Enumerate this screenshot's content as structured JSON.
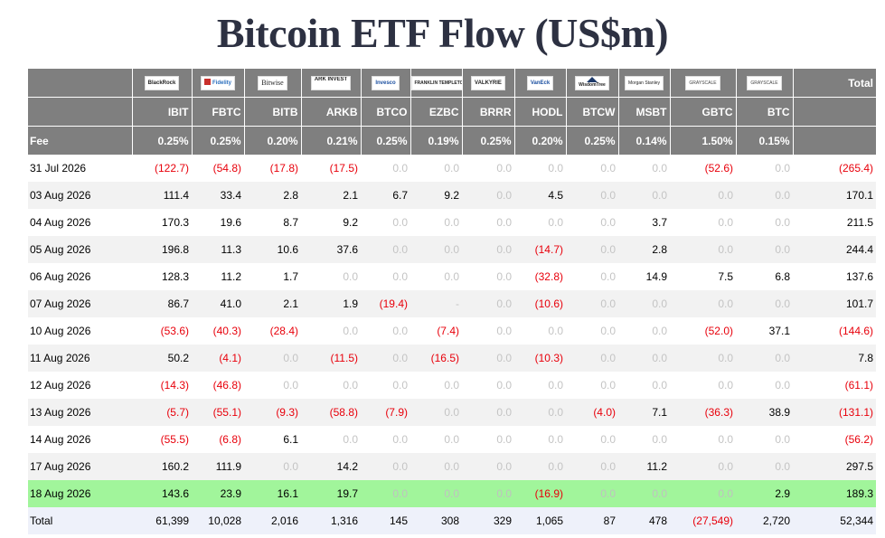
{
  "title": "Bitcoin ETF Flow (US$m)",
  "headers": {
    "logos": [
      "BlackRock",
      "Fidelity",
      "Bitwise",
      "ARK INVEST",
      "Invesco",
      "FRANKLIN TEMPLETON",
      "VALKYRIE",
      "VanEck",
      "WisdomTree",
      "Morgan Stanley",
      "GRAYSCALE",
      "GRAYSCALE"
    ],
    "tickers": [
      "IBIT",
      "FBTC",
      "BITB",
      "ARKB",
      "BTCO",
      "EZBC",
      "BRRR",
      "HODL",
      "BTCW",
      "MSBT",
      "GBTC",
      "BTC"
    ],
    "fee_label": "Fee",
    "fees": [
      "0.25%",
      "0.25%",
      "0.20%",
      "0.21%",
      "0.25%",
      "0.19%",
      "0.25%",
      "0.20%",
      "0.25%",
      "0.14%",
      "1.50%",
      "0.15%"
    ],
    "total_label": "Total"
  },
  "rows": [
    {
      "date": "31 Jul 2026",
      "values": [
        "(122.7)",
        "(54.8)",
        "(17.8)",
        "(17.5)",
        "0.0",
        "0.0",
        "0.0",
        "0.0",
        "0.0",
        "0.0",
        "(52.6)",
        "0.0"
      ],
      "total": "(265.4)"
    },
    {
      "date": "03 Aug 2026",
      "values": [
        "111.4",
        "33.4",
        "2.8",
        "2.1",
        "6.7",
        "9.2",
        "0.0",
        "4.5",
        "0.0",
        "0.0",
        "0.0",
        "0.0"
      ],
      "total": "170.1"
    },
    {
      "date": "04 Aug 2026",
      "values": [
        "170.3",
        "19.6",
        "8.7",
        "9.2",
        "0.0",
        "0.0",
        "0.0",
        "0.0",
        "0.0",
        "3.7",
        "0.0",
        "0.0"
      ],
      "total": "211.5"
    },
    {
      "date": "05 Aug 2026",
      "values": [
        "196.8",
        "11.3",
        "10.6",
        "37.6",
        "0.0",
        "0.0",
        "0.0",
        "(14.7)",
        "0.0",
        "2.8",
        "0.0",
        "0.0"
      ],
      "total": "244.4"
    },
    {
      "date": "06 Aug 2026",
      "values": [
        "128.3",
        "11.2",
        "1.7",
        "0.0",
        "0.0",
        "0.0",
        "0.0",
        "(32.8)",
        "0.0",
        "14.9",
        "7.5",
        "6.8"
      ],
      "total": "137.6"
    },
    {
      "date": "07 Aug 2026",
      "values": [
        "86.7",
        "41.0",
        "2.1",
        "1.9",
        "(19.4)",
        "-",
        "0.0",
        "(10.6)",
        "0.0",
        "0.0",
        "0.0",
        "0.0"
      ],
      "total": "101.7"
    },
    {
      "date": "10 Aug 2026",
      "values": [
        "(53.6)",
        "(40.3)",
        "(28.4)",
        "0.0",
        "0.0",
        "(7.4)",
        "0.0",
        "0.0",
        "0.0",
        "0.0",
        "(52.0)",
        "37.1"
      ],
      "total": "(144.6)"
    },
    {
      "date": "11 Aug 2026",
      "values": [
        "50.2",
        "(4.1)",
        "0.0",
        "(11.5)",
        "0.0",
        "(16.5)",
        "0.0",
        "(10.3)",
        "0.0",
        "0.0",
        "0.0",
        "0.0"
      ],
      "total": "7.8"
    },
    {
      "date": "12 Aug 2026",
      "values": [
        "(14.3)",
        "(46.8)",
        "0.0",
        "0.0",
        "0.0",
        "0.0",
        "0.0",
        "0.0",
        "0.0",
        "0.0",
        "0.0",
        "0.0"
      ],
      "total": "(61.1)"
    },
    {
      "date": "13 Aug 2026",
      "values": [
        "(5.7)",
        "(55.1)",
        "(9.3)",
        "(58.8)",
        "(7.9)",
        "0.0",
        "0.0",
        "0.0",
        "(4.0)",
        "7.1",
        "(36.3)",
        "38.9"
      ],
      "total": "(131.1)"
    },
    {
      "date": "14 Aug 2026",
      "values": [
        "(55.5)",
        "(6.8)",
        "6.1",
        "0.0",
        "0.0",
        "0.0",
        "0.0",
        "0.0",
        "0.0",
        "0.0",
        "0.0",
        "0.0"
      ],
      "total": "(56.2)"
    },
    {
      "date": "17 Aug 2026",
      "values": [
        "160.2",
        "111.9",
        "0.0",
        "14.2",
        "0.0",
        "0.0",
        "0.0",
        "0.0",
        "0.0",
        "11.2",
        "0.0",
        "0.0"
      ],
      "total": "297.5"
    },
    {
      "date": "18 Aug 2026",
      "values": [
        "143.6",
        "23.9",
        "16.1",
        "19.7",
        "0.0",
        "0.0",
        "0.0",
        "(16.9)",
        "0.0",
        "0.0",
        "0.0",
        "2.9"
      ],
      "total": "189.3",
      "highlight": true
    }
  ],
  "totals": {
    "label": "Total",
    "values": [
      "61,399",
      "10,028",
      "2,016",
      "1,316",
      "145",
      "308",
      "329",
      "1,065",
      "87",
      "478",
      "(27,549)",
      "2,720"
    ],
    "total": "52,344"
  },
  "colors": {
    "header_bg": "#7f7f7f",
    "negative": "#e8000b",
    "zero": "#c4c4c4",
    "highlight_row": "#a1f59b",
    "total_row": "#eef1fa",
    "title": "#2d3142"
  }
}
